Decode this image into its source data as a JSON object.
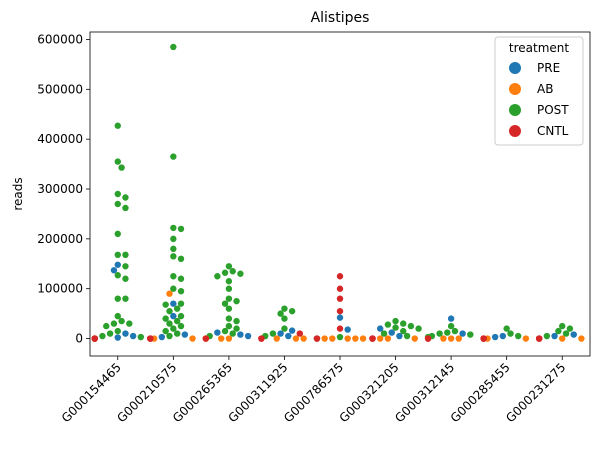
{
  "chart_data": {
    "type": "scatter",
    "subtype": "swarm",
    "title": "Alistipes",
    "xlabel": "",
    "ylabel": "reads",
    "ylim": [
      -35000,
      615000
    ],
    "yticks": [
      0,
      100000,
      200000,
      300000,
      400000,
      500000,
      600000
    ],
    "categories": [
      "G000154465",
      "G000210575",
      "G000265365",
      "G000311925",
      "G000786575",
      "G000321205",
      "G000312145",
      "G000285455",
      "G000231275"
    ],
    "legend": {
      "title": "treatment",
      "position": "top-right",
      "entries": [
        {
          "label": "PRE",
          "color": "#1f77b4"
        },
        {
          "label": "AB",
          "color": "#ff7f0e"
        },
        {
          "label": "POST",
          "color": "#2ca02c"
        },
        {
          "label": "CNTL",
          "color": "#d62728"
        }
      ]
    },
    "series": [
      {
        "name": "PRE",
        "color": "#1f77b4",
        "values": [
          [
            0,
            148000
          ],
          [
            0,
            137000
          ],
          [
            0,
            10000
          ],
          [
            0,
            5000
          ],
          [
            0,
            2000
          ],
          [
            1,
            70000
          ],
          [
            1,
            45000
          ],
          [
            1,
            8000
          ],
          [
            1,
            3000
          ],
          [
            2,
            12000
          ],
          [
            2,
            8000
          ],
          [
            2,
            5000
          ],
          [
            3,
            16000
          ],
          [
            3,
            10000
          ],
          [
            3,
            5000
          ],
          [
            4,
            42000
          ],
          [
            4,
            18000
          ],
          [
            5,
            20000
          ],
          [
            5,
            12000
          ],
          [
            5,
            5000
          ],
          [
            6,
            40000
          ],
          [
            6,
            10000
          ],
          [
            7,
            5000
          ],
          [
            7,
            3000
          ],
          [
            8,
            8000
          ],
          [
            8,
            5000
          ]
        ]
      },
      {
        "name": "AB",
        "color": "#ff7f0e",
        "values": [
          [
            0,
            0
          ],
          [
            0,
            0
          ],
          [
            0,
            0
          ],
          [
            0,
            0
          ],
          [
            0,
            0
          ],
          [
            0,
            0
          ],
          [
            1,
            90000
          ],
          [
            1,
            0
          ],
          [
            1,
            0
          ],
          [
            1,
            0
          ],
          [
            1,
            0
          ],
          [
            2,
            0
          ],
          [
            2,
            0
          ],
          [
            2,
            0
          ],
          [
            2,
            0
          ],
          [
            2,
            0
          ],
          [
            3,
            0
          ],
          [
            3,
            0
          ],
          [
            3,
            0
          ],
          [
            3,
            0
          ],
          [
            4,
            0
          ],
          [
            4,
            0
          ],
          [
            4,
            0
          ],
          [
            4,
            0
          ],
          [
            4,
            0
          ],
          [
            5,
            0
          ],
          [
            5,
            0
          ],
          [
            5,
            0
          ],
          [
            5,
            0
          ],
          [
            6,
            0
          ],
          [
            6,
            0
          ],
          [
            6,
            0
          ],
          [
            6,
            0
          ],
          [
            7,
            0
          ],
          [
            7,
            0
          ],
          [
            7,
            0
          ],
          [
            8,
            0
          ],
          [
            8,
            0
          ],
          [
            8,
            0
          ]
        ]
      },
      {
        "name": "POST",
        "color": "#2ca02c",
        "values": [
          [
            0,
            427000
          ],
          [
            0,
            355000
          ],
          [
            0,
            343000
          ],
          [
            0,
            290000
          ],
          [
            0,
            283000
          ],
          [
            0,
            270000
          ],
          [
            0,
            262000
          ],
          [
            0,
            210000
          ],
          [
            0,
            168000
          ],
          [
            0,
            168000
          ],
          [
            0,
            145000
          ],
          [
            0,
            127000
          ],
          [
            0,
            120000
          ],
          [
            0,
            80000
          ],
          [
            0,
            80000
          ],
          [
            0,
            45000
          ],
          [
            0,
            35000
          ],
          [
            0,
            30000
          ],
          [
            0,
            30000
          ],
          [
            0,
            25000
          ],
          [
            0,
            15000
          ],
          [
            0,
            10000
          ],
          [
            0,
            5000
          ],
          [
            0,
            3000
          ],
          [
            0,
            0
          ],
          [
            1,
            585000
          ],
          [
            1,
            365000
          ],
          [
            1,
            222000
          ],
          [
            1,
            220000
          ],
          [
            1,
            200000
          ],
          [
            1,
            180000
          ],
          [
            1,
            165000
          ],
          [
            1,
            160000
          ],
          [
            1,
            125000
          ],
          [
            1,
            120000
          ],
          [
            1,
            100000
          ],
          [
            1,
            95000
          ],
          [
            1,
            70000
          ],
          [
            1,
            68000
          ],
          [
            1,
            60000
          ],
          [
            1,
            55000
          ],
          [
            1,
            45000
          ],
          [
            1,
            40000
          ],
          [
            1,
            35000
          ],
          [
            1,
            30000
          ],
          [
            1,
            25000
          ],
          [
            1,
            20000
          ],
          [
            1,
            15000
          ],
          [
            1,
            10000
          ],
          [
            1,
            5000
          ],
          [
            2,
            145000
          ],
          [
            2,
            135000
          ],
          [
            2,
            132000
          ],
          [
            2,
            130000
          ],
          [
            2,
            125000
          ],
          [
            2,
            115000
          ],
          [
            2,
            100000
          ],
          [
            2,
            80000
          ],
          [
            2,
            75000
          ],
          [
            2,
            70000
          ],
          [
            2,
            60000
          ],
          [
            2,
            40000
          ],
          [
            2,
            35000
          ],
          [
            2,
            25000
          ],
          [
            2,
            20000
          ],
          [
            2,
            15000
          ],
          [
            2,
            10000
          ],
          [
            2,
            5000
          ],
          [
            3,
            60000
          ],
          [
            3,
            55000
          ],
          [
            3,
            50000
          ],
          [
            3,
            40000
          ],
          [
            3,
            20000
          ],
          [
            3,
            10000
          ],
          [
            3,
            5000
          ],
          [
            4,
            3000
          ],
          [
            4,
            0
          ],
          [
            5,
            35000
          ],
          [
            5,
            30000
          ],
          [
            5,
            28000
          ],
          [
            5,
            25000
          ],
          [
            5,
            22000
          ],
          [
            5,
            20000
          ],
          [
            5,
            15000
          ],
          [
            5,
            10000
          ],
          [
            5,
            5000
          ],
          [
            6,
            25000
          ],
          [
            6,
            15000
          ],
          [
            6,
            12000
          ],
          [
            6,
            10000
          ],
          [
            6,
            8000
          ],
          [
            6,
            5000
          ],
          [
            6,
            3000
          ],
          [
            7,
            20000
          ],
          [
            7,
            10000
          ],
          [
            7,
            5000
          ],
          [
            8,
            25000
          ],
          [
            8,
            20000
          ],
          [
            8,
            15000
          ],
          [
            8,
            10000
          ],
          [
            8,
            5000
          ]
        ]
      },
      {
        "name": "CNTL",
        "color": "#d62728",
        "values": [
          [
            0,
            0
          ],
          [
            0,
            0
          ],
          [
            0,
            0
          ],
          [
            1,
            0
          ],
          [
            1,
            0
          ],
          [
            1,
            0
          ],
          [
            2,
            0
          ],
          [
            3,
            10000
          ],
          [
            3,
            0
          ],
          [
            3,
            0
          ],
          [
            4,
            125000
          ],
          [
            4,
            100000
          ],
          [
            4,
            80000
          ],
          [
            4,
            55000
          ],
          [
            4,
            20000
          ],
          [
            4,
            0
          ],
          [
            4,
            0
          ],
          [
            5,
            0
          ],
          [
            5,
            0
          ],
          [
            5,
            0
          ],
          [
            6,
            0
          ],
          [
            6,
            0
          ],
          [
            7,
            0
          ],
          [
            7,
            0
          ],
          [
            7,
            0
          ],
          [
            8,
            0
          ],
          [
            8,
            0
          ],
          [
            8,
            0
          ]
        ]
      }
    ]
  }
}
